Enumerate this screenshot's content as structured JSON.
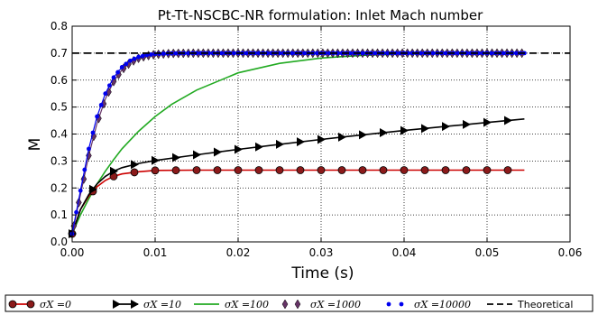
{
  "chart_data": {
    "type": "line",
    "title": "Pt-Tt-NSCBC-NR formulation:  Inlet Mach number",
    "xlabel": "Time (s)",
    "ylabel": "M",
    "xlim": [
      0.0,
      0.06
    ],
    "ylim": [
      0.0,
      0.8
    ],
    "x_ticks": [
      "0.00",
      "0.01",
      "0.02",
      "0.03",
      "0.04",
      "0.05",
      "0.06"
    ],
    "y_ticks": [
      "0.0",
      "0.1",
      "0.2",
      "0.3",
      "0.4",
      "0.5",
      "0.6",
      "0.7",
      "0.8"
    ],
    "grid": true,
    "legend_position": "bottom",
    "series": [
      {
        "name": "σX =0",
        "color": "#cc0000",
        "marker": "circle",
        "x": [
          0.0,
          0.001,
          0.002,
          0.003,
          0.004,
          0.005,
          0.006,
          0.008,
          0.01,
          0.015,
          0.02,
          0.03,
          0.04,
          0.0545
        ],
        "y": [
          0.03,
          0.12,
          0.17,
          0.205,
          0.228,
          0.243,
          0.252,
          0.26,
          0.265,
          0.266,
          0.266,
          0.266,
          0.266,
          0.266
        ]
      },
      {
        "name": "σX =10",
        "color": "#000000",
        "marker": "triangle-right",
        "x": [
          0.0,
          0.001,
          0.002,
          0.003,
          0.004,
          0.005,
          0.006,
          0.008,
          0.01,
          0.015,
          0.02,
          0.025,
          0.03,
          0.035,
          0.04,
          0.045,
          0.05,
          0.0545
        ],
        "y": [
          0.03,
          0.12,
          0.175,
          0.215,
          0.243,
          0.262,
          0.275,
          0.291,
          0.302,
          0.323,
          0.343,
          0.362,
          0.38,
          0.397,
          0.413,
          0.428,
          0.443,
          0.456
        ]
      },
      {
        "name": "σX =100",
        "color": "#22aa22",
        "marker": "none",
        "x": [
          0.0,
          0.001,
          0.002,
          0.003,
          0.004,
          0.005,
          0.006,
          0.008,
          0.01,
          0.012,
          0.015,
          0.02,
          0.025,
          0.03,
          0.035,
          0.04,
          0.045,
          0.05,
          0.0545
        ],
        "y": [
          0.03,
          0.1,
          0.16,
          0.215,
          0.262,
          0.305,
          0.345,
          0.41,
          0.465,
          0.51,
          0.563,
          0.627,
          0.662,
          0.682,
          0.692,
          0.697,
          0.699,
          0.7,
          0.7
        ]
      },
      {
        "name": "σX =1000",
        "color": "#663366",
        "marker": "diamond",
        "x": [
          0.0,
          0.001,
          0.002,
          0.003,
          0.004,
          0.005,
          0.006,
          0.007,
          0.008,
          0.009,
          0.01,
          0.012,
          0.015,
          0.02,
          0.03,
          0.04,
          0.05,
          0.0545
        ],
        "y": [
          0.03,
          0.175,
          0.32,
          0.44,
          0.53,
          0.595,
          0.638,
          0.665,
          0.681,
          0.69,
          0.695,
          0.699,
          0.7,
          0.7,
          0.7,
          0.7,
          0.7,
          0.7
        ]
      },
      {
        "name": "σX =10000",
        "color": "#0000ee",
        "marker": "dot",
        "x": [
          0.0,
          0.001,
          0.002,
          0.003,
          0.004,
          0.005,
          0.006,
          0.007,
          0.008,
          0.009,
          0.01,
          0.012,
          0.015,
          0.02,
          0.03,
          0.04,
          0.05,
          0.0545
        ],
        "y": [
          0.03,
          0.19,
          0.345,
          0.465,
          0.55,
          0.61,
          0.648,
          0.672,
          0.686,
          0.693,
          0.697,
          0.699,
          0.7,
          0.7,
          0.7,
          0.7,
          0.7,
          0.7
        ]
      },
      {
        "name": "Theoretical",
        "color": "#000000",
        "marker": "none",
        "dashed": true,
        "x": [
          0.0,
          0.06
        ],
        "y": [
          0.7,
          0.7
        ]
      }
    ]
  }
}
